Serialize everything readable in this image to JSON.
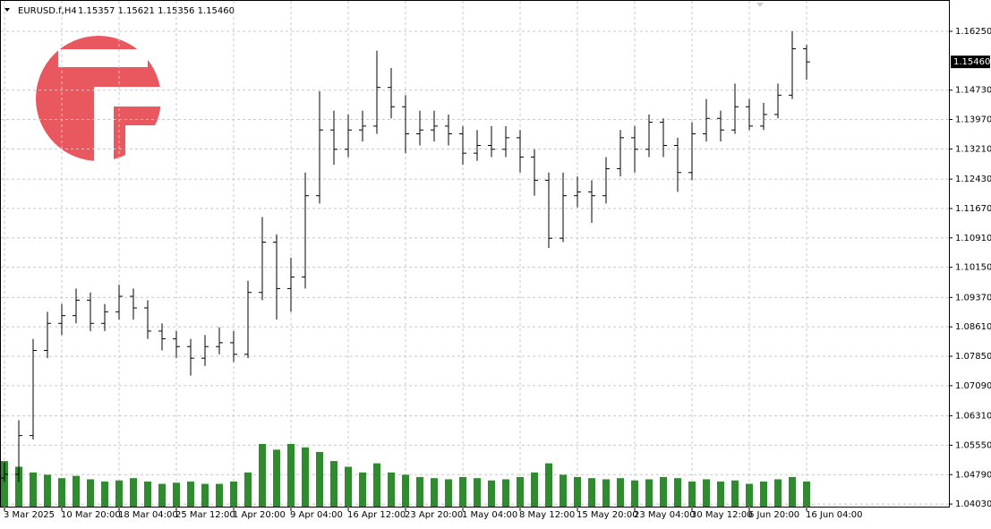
{
  "chart_data": {
    "type": "ohlc",
    "header": {
      "symbol": "EURUSD.f,H4",
      "quote": "1.15357 1.15621 1.15356 1.15460"
    },
    "current_price": {
      "value": 1.1546,
      "label": "1.15460"
    },
    "bar_color": "#000000",
    "volume_color": "#2e8b2e",
    "grid": true,
    "ylim": [
      1.0394,
      1.1706
    ],
    "yticks": [
      {
        "value": 1.0403,
        "label": "1.04030"
      },
      {
        "value": 1.0479,
        "label": "1.04790"
      },
      {
        "value": 1.0555,
        "label": "1.05550"
      },
      {
        "value": 1.0631,
        "label": "1.06310"
      },
      {
        "value": 1.0709,
        "label": "1.07090"
      },
      {
        "value": 1.0785,
        "label": "1.07850"
      },
      {
        "value": 1.0861,
        "label": "1.08610"
      },
      {
        "value": 1.0937,
        "label": "1.09370"
      },
      {
        "value": 1.1015,
        "label": "1.10150"
      },
      {
        "value": 1.1091,
        "label": "1.10910"
      },
      {
        "value": 1.1167,
        "label": "1.11670"
      },
      {
        "value": 1.1243,
        "label": "1.12430"
      },
      {
        "value": 1.1321,
        "label": "1.13210"
      },
      {
        "value": 1.1397,
        "label": "1.13970"
      },
      {
        "value": 1.1473,
        "label": "1.14730"
      },
      {
        "value": 1.1625,
        "label": "1.16250"
      }
    ],
    "xlim": [
      0,
      56
    ],
    "xticks": [
      {
        "value": 0,
        "label": "3 Mar 2025"
      },
      {
        "value": 4,
        "label": "10 Mar 20:00"
      },
      {
        "value": 8,
        "label": "18 Mar 04:00"
      },
      {
        "value": 12,
        "label": "25 Mar 12:00"
      },
      {
        "value": 16,
        "label": "1 Apr 20:00"
      },
      {
        "value": 20,
        "label": "9 Apr 04:00"
      },
      {
        "value": 24,
        "label": "16 Apr 12:00"
      },
      {
        "value": 28,
        "label": "23 Apr 20:00"
      },
      {
        "value": 32,
        "label": "1 May 04:00"
      },
      {
        "value": 36,
        "label": "8 May 12:00"
      },
      {
        "value": 40,
        "label": "15 May 20:00"
      },
      {
        "value": 44,
        "label": "23 May 04:00"
      },
      {
        "value": 48,
        "label": "30 May 12:00"
      },
      {
        "value": 52,
        "label": "6 Jun 20:00"
      },
      {
        "value": 56,
        "label": "16 Jun 04:00"
      }
    ],
    "open": [
      1.047,
      1.048,
      1.058,
      1.08,
      1.087,
      1.089,
      1.093,
      1.087,
      1.09,
      1.094,
      1.091,
      1.085,
      1.083,
      1.081,
      1.078,
      1.081,
      1.082,
      1.079,
      1.095,
      1.108,
      1.096,
      1.099,
      1.12,
      1.137,
      1.132,
      1.137,
      1.138,
      1.148,
      1.143,
      1.136,
      1.137,
      1.138,
      1.136,
      1.131,
      1.133,
      1.132,
      1.135,
      1.13,
      1.124,
      1.109,
      1.12,
      1.121,
      1.12,
      1.127,
      1.135,
      1.132,
      1.139,
      1.133,
      1.126,
      1.136,
      1.14,
      1.137,
      1.143,
      1.138,
      1.141,
      1.146,
      1.158
    ],
    "high": [
      1.051,
      1.062,
      1.083,
      1.09,
      1.092,
      1.096,
      1.095,
      1.092,
      1.097,
      1.096,
      1.093,
      1.087,
      1.085,
      1.083,
      1.084,
      1.086,
      1.085,
      1.098,
      1.1145,
      1.11,
      1.104,
      1.126,
      1.147,
      1.142,
      1.141,
      1.142,
      1.1575,
      1.153,
      1.146,
      1.142,
      1.142,
      1.141,
      1.138,
      1.137,
      1.138,
      1.138,
      1.137,
      1.132,
      1.126,
      1.126,
      1.125,
      1.124,
      1.13,
      1.137,
      1.138,
      1.141,
      1.14,
      1.135,
      1.139,
      1.145,
      1.142,
      1.149,
      1.145,
      1.144,
      1.149,
      1.1625,
      1.159
    ],
    "low": [
      1.046,
      1.046,
      1.057,
      1.078,
      1.084,
      1.087,
      1.085,
      1.085,
      1.088,
      1.088,
      1.083,
      1.08,
      1.078,
      1.0735,
      1.076,
      1.079,
      1.077,
      1.078,
      1.093,
      1.088,
      1.09,
      1.096,
      1.118,
      1.128,
      1.13,
      1.134,
      1.136,
      1.14,
      1.131,
      1.133,
      1.134,
      1.133,
      1.128,
      1.129,
      1.13,
      1.13,
      1.126,
      1.12,
      1.1065,
      1.108,
      1.117,
      1.113,
      1.118,
      1.125,
      1.126,
      1.13,
      1.13,
      1.121,
      1.124,
      1.134,
      1.134,
      1.136,
      1.137,
      1.137,
      1.14,
      1.145,
      1.15
    ],
    "close": [
      1.048,
      1.058,
      1.08,
      1.087,
      1.089,
      1.093,
      1.087,
      1.09,
      1.094,
      1.091,
      1.085,
      1.083,
      1.081,
      1.078,
      1.081,
      1.082,
      1.079,
      1.095,
      1.108,
      1.096,
      1.099,
      1.12,
      1.137,
      1.132,
      1.137,
      1.138,
      1.148,
      1.143,
      1.136,
      1.137,
      1.138,
      1.136,
      1.131,
      1.133,
      1.132,
      1.135,
      1.13,
      1.124,
      1.109,
      1.12,
      1.121,
      1.12,
      1.127,
      1.135,
      1.132,
      1.139,
      1.133,
      1.126,
      1.136,
      1.14,
      1.137,
      1.143,
      1.138,
      1.141,
      1.146,
      1.158,
      1.1546
    ],
    "volume": [
      40,
      35,
      30,
      28,
      25,
      27,
      24,
      22,
      23,
      25,
      22,
      20,
      21,
      22,
      20,
      20,
      22,
      30,
      55,
      50,
      55,
      52,
      48,
      40,
      35,
      30,
      38,
      30,
      28,
      26,
      25,
      24,
      26,
      25,
      23,
      24,
      26,
      30,
      38,
      28,
      26,
      25,
      24,
      25,
      23,
      24,
      26,
      25,
      22,
      24,
      22,
      23,
      20,
      22,
      24,
      26,
      22
    ]
  }
}
